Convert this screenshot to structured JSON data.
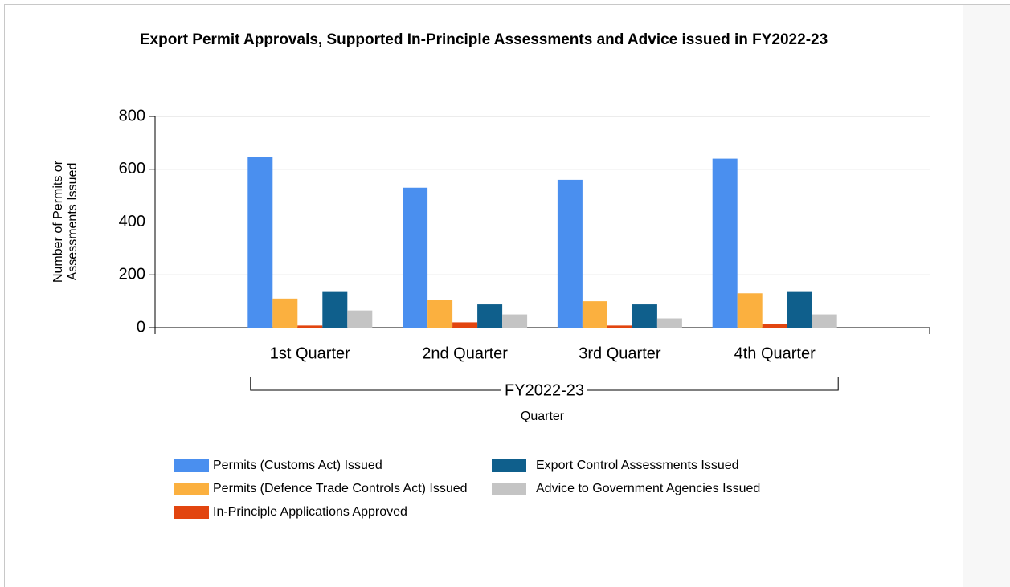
{
  "chart_data": {
    "type": "bar",
    "title": "Export Permit Approvals, Supported In-Principle Assessments and Advice issued in FY2022-23",
    "ylabel": "Number of Permits or Assessments Issued",
    "xlabel": "Quarter",
    "group_label": "FY2022-23",
    "categories": [
      "1st Quarter",
      "2nd Quarter",
      "3rd Quarter",
      "4th Quarter"
    ],
    "series": [
      {
        "name": "Permits (Customs Act) Issued",
        "color": "#4a8fef",
        "values": [
          645,
          530,
          560,
          640
        ]
      },
      {
        "name": "Permits (Defence Trade Controls Act) Issued",
        "color": "#fbb03f",
        "values": [
          110,
          105,
          100,
          130
        ]
      },
      {
        "name": "In-Principle Applications Approved",
        "color": "#e2450f",
        "values": [
          8,
          20,
          8,
          15
        ]
      },
      {
        "name": "Export Control Assessments Issued",
        "color": "#0f5f8c",
        "values": [
          135,
          88,
          88,
          135
        ]
      },
      {
        "name": "Advice to Government Agencies Issued",
        "color": "#c4c4c4",
        "values": [
          65,
          50,
          35,
          50
        ]
      }
    ],
    "ylim": [
      0,
      800
    ],
    "yticks": [
      0,
      200,
      400,
      600,
      800
    ],
    "grid": true
  }
}
